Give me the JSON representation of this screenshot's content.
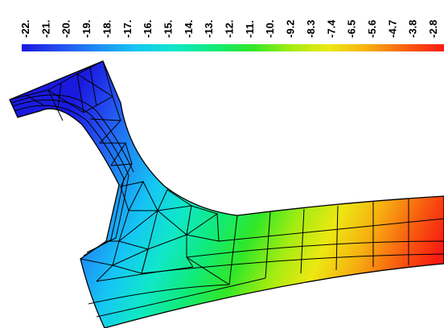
{
  "legend": {
    "ticks": [
      "-22.",
      "-21.",
      "-20.",
      "-19.",
      "-18.",
      "-17.",
      "-16.",
      "-15.",
      "-14.",
      "-13.",
      "-12.",
      "-11.",
      "-10.",
      "-9.2",
      "-8.3",
      "-7.4",
      "-6.5",
      "-5.6",
      "-4.7",
      "-3.8",
      "-2.8"
    ],
    "colormap": [
      "#1a1adf",
      "#2450f0",
      "#1d8ef5",
      "#15c7f3",
      "#10e8c8",
      "#10ea7a",
      "#30e828",
      "#a2ec12",
      "#ece812",
      "#f6b010",
      "#f86010",
      "#f71a10"
    ]
  }
}
